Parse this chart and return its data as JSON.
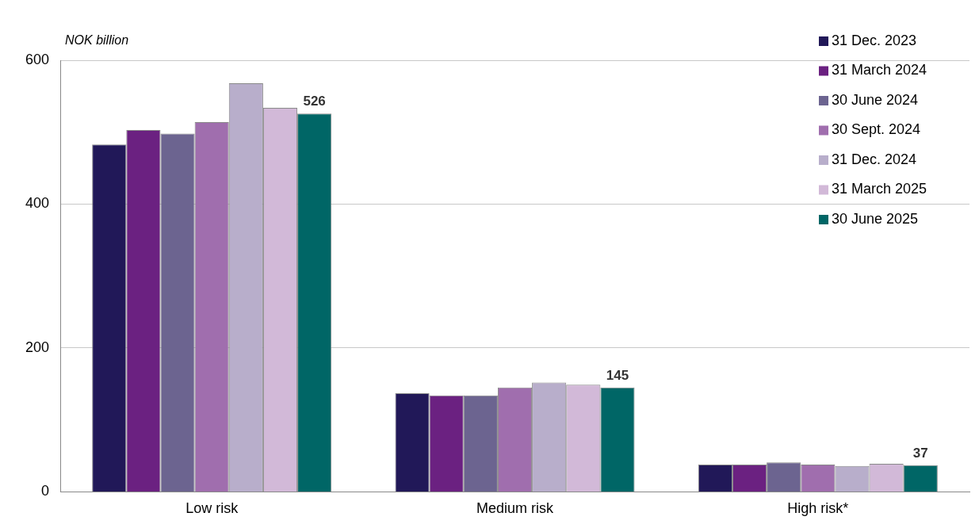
{
  "chart_data": {
    "type": "bar",
    "ylabel": "NOK billion",
    "categories": [
      "Low risk",
      "Medium risk",
      "High risk*"
    ],
    "series": [
      {
        "name": "31 Dec. 2023",
        "color": "#211858",
        "values": [
          483,
          137,
          38
        ]
      },
      {
        "name": "31 March 2024",
        "color": "#6b2181",
        "values": [
          503,
          134,
          38
        ]
      },
      {
        "name": "30 June 2024",
        "color": "#6c6490",
        "values": [
          498,
          134,
          41
        ]
      },
      {
        "name": "30 Sept. 2024",
        "color": "#a06eae",
        "values": [
          514,
          145,
          38
        ]
      },
      {
        "name": "31 Dec. 2024",
        "color": "#b8aecb",
        "values": [
          568,
          152,
          36
        ]
      },
      {
        "name": "31 March 2025",
        "color": "#d2b9d8",
        "values": [
          534,
          149,
          39
        ]
      },
      {
        "name": "30 June 2025",
        "color": "#006666",
        "values": [
          526,
          145,
          37
        ],
        "value_labels": [
          "526",
          "145",
          "37"
        ]
      }
    ],
    "ylim": [
      0,
      600
    ],
    "yticks": [
      0,
      200,
      400,
      600
    ],
    "grid": "y",
    "legend": "top right"
  }
}
